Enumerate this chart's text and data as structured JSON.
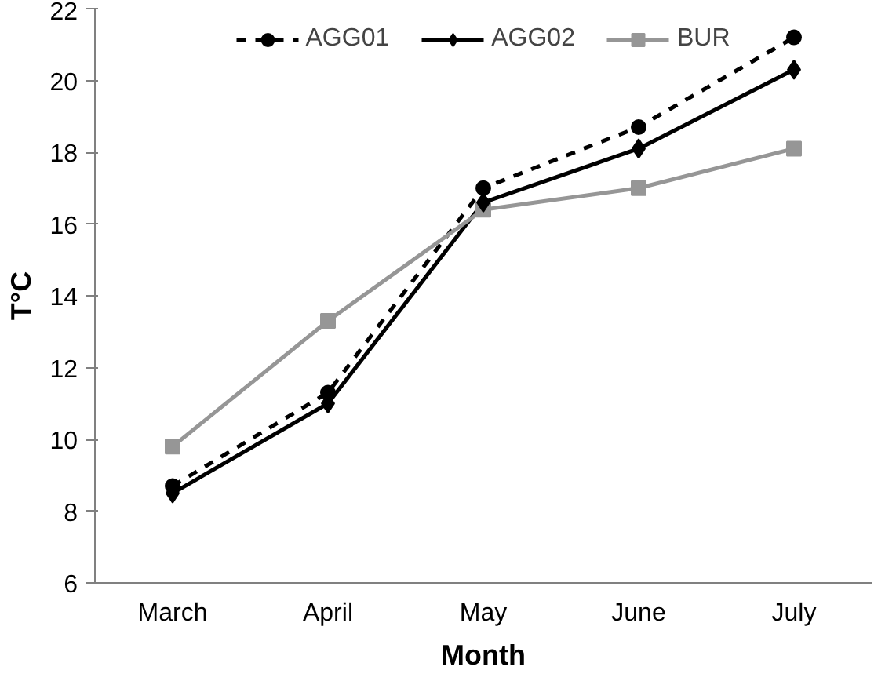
{
  "chart_data": {
    "type": "line",
    "xlabel": "Month",
    "ylabel": "T°C",
    "categories": [
      "March",
      "April",
      "May",
      "June",
      "July"
    ],
    "ylim": [
      6,
      22
    ],
    "yticks": [
      6,
      8,
      10,
      12,
      14,
      16,
      18,
      20,
      22
    ],
    "grid": false,
    "legend": "top",
    "series": [
      {
        "name": "AGG01",
        "color": "#000000",
        "marker": "circle",
        "line_style": "dashed",
        "values": [
          8.7,
          11.3,
          17.0,
          18.7,
          21.2
        ]
      },
      {
        "name": "AGG02",
        "color": "#000000",
        "marker": "diamond",
        "line_style": "solid",
        "values": [
          8.5,
          11.0,
          16.6,
          18.1,
          20.3
        ]
      },
      {
        "name": "BUR",
        "color": "#969696",
        "marker": "square",
        "line_style": "solid",
        "values": [
          9.8,
          13.3,
          16.4,
          17.0,
          18.1
        ]
      }
    ]
  }
}
